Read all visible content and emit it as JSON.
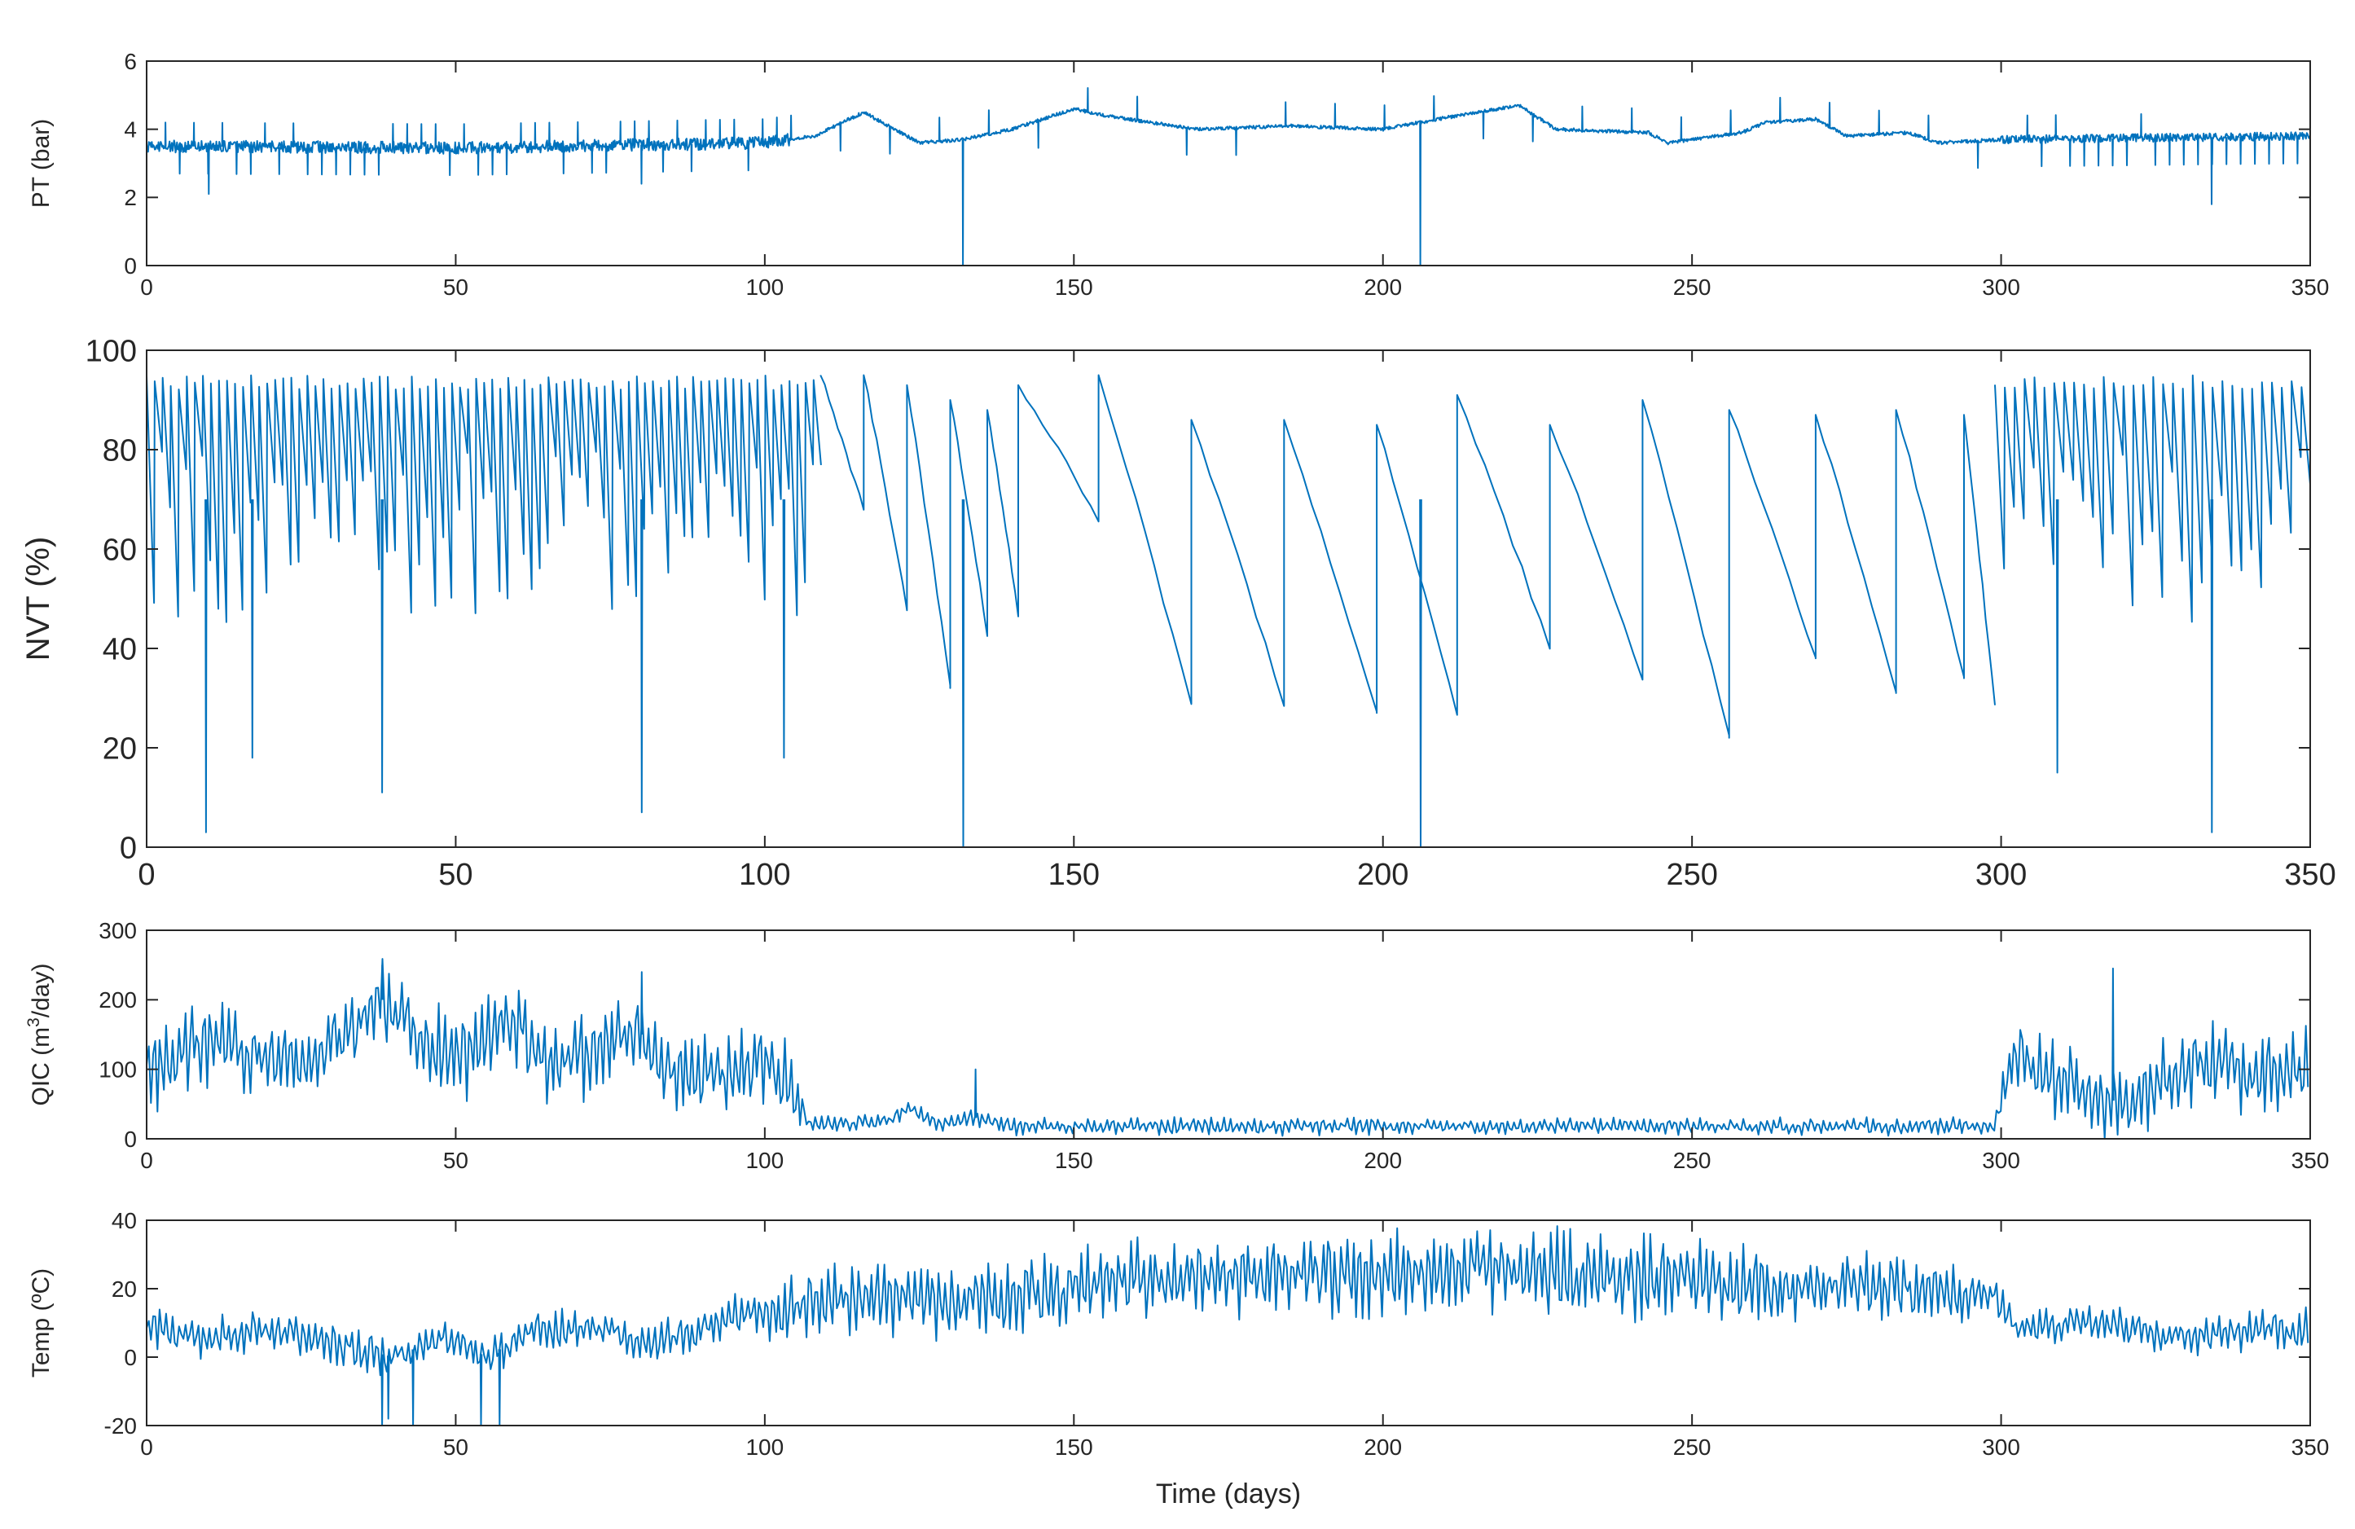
{
  "line_color": "#0072BD",
  "axes_color": "#262626",
  "chart_data": [
    {
      "id": "pt",
      "type": "line",
      "ylabel": "PT (bar)",
      "xlabel": "",
      "xlim": [
        0,
        350
      ],
      "ylim": [
        0,
        6
      ],
      "xticks": [
        0,
        50,
        100,
        150,
        200,
        250,
        300,
        350
      ],
      "xtick_labels": [
        "0",
        "50",
        "100",
        "150",
        "200",
        "250",
        "300",
        "350"
      ],
      "yticks": [
        0,
        2,
        4,
        6
      ],
      "ytick_labels": [
        "0",
        "2",
        "4",
        "6"
      ],
      "baseline": [
        [
          0,
          3.5
        ],
        [
          50,
          3.45
        ],
        [
          100,
          3.6
        ],
        [
          108,
          3.8
        ],
        [
          116,
          4.5
        ],
        [
          125,
          3.6
        ],
        [
          132,
          3.7
        ],
        [
          140,
          4.0
        ],
        [
          150,
          4.6
        ],
        [
          155,
          4.4
        ],
        [
          170,
          4.0
        ],
        [
          185,
          4.1
        ],
        [
          200,
          4.0
        ],
        [
          212,
          4.4
        ],
        [
          222,
          4.7
        ],
        [
          228,
          4.0
        ],
        [
          243,
          3.9
        ],
        [
          246,
          3.6
        ],
        [
          258,
          3.9
        ],
        [
          262,
          4.2
        ],
        [
          270,
          4.3
        ],
        [
          275,
          3.8
        ],
        [
          285,
          3.9
        ],
        [
          290,
          3.6
        ],
        [
          300,
          3.7
        ],
        [
          350,
          3.8
        ]
      ],
      "noise_segments": [
        [
          0,
          104,
          0.18
        ],
        [
          104,
          300,
          0.05
        ],
        [
          300,
          350,
          0.12
        ]
      ],
      "spikes": [
        [
          10,
          2.1
        ],
        [
          132,
          0
        ],
        [
          206,
          0
        ],
        [
          334,
          1.8
        ],
        [
          80,
          2.4
        ]
      ]
    },
    {
      "id": "nvt",
      "type": "line",
      "ylabel": "NVT (%)",
      "xlabel": "",
      "xlim": [
        0,
        350
      ],
      "ylim": [
        0,
        100
      ],
      "xticks": [
        0,
        50,
        100,
        150,
        200,
        250,
        300,
        350
      ],
      "xtick_labels": [
        "0",
        "50",
        "100",
        "150",
        "200",
        "250",
        "300",
        "350"
      ],
      "yticks": [
        0,
        20,
        40,
        60,
        80,
        100
      ],
      "ytick_labels": [
        "0",
        "20",
        "40",
        "60",
        "80",
        "100"
      ],
      "cycles": [
        [
          109,
          95,
          68
        ],
        [
          116,
          95,
          48
        ],
        [
          123,
          93,
          32
        ],
        [
          130,
          90,
          43
        ],
        [
          136,
          88,
          47
        ],
        [
          141,
          93,
          66
        ],
        [
          154,
          95,
          29
        ],
        [
          169,
          86,
          29
        ],
        [
          184,
          86,
          27
        ],
        [
          199,
          85,
          27
        ],
        [
          212,
          91,
          40
        ],
        [
          227,
          85,
          34
        ],
        [
          242,
          90,
          22
        ],
        [
          256,
          88,
          38
        ],
        [
          270,
          87,
          31
        ],
        [
          283,
          88,
          34
        ],
        [
          294,
          87,
          28
        ]
      ],
      "dense_ranges": [
        [
          0,
          108,
          1.3,
          95
        ],
        [
          299,
          350,
          1.6,
          95
        ]
      ],
      "spikes": [
        [
          132,
          0
        ],
        [
          206,
          0
        ],
        [
          9.5,
          3
        ],
        [
          38,
          11
        ],
        [
          80,
          7
        ],
        [
          334,
          3
        ],
        [
          309,
          15
        ],
        [
          17,
          18
        ],
        [
          103,
          18
        ]
      ]
    },
    {
      "id": "qic",
      "type": "line",
      "ylabel": "QIC (m3/day)",
      "ylabel_parts": [
        "QIC (m",
        "3",
        "/day)"
      ],
      "xlabel": "",
      "xlim": [
        0,
        350
      ],
      "ylim": [
        0,
        300
      ],
      "xticks": [
        0,
        50,
        100,
        150,
        200,
        250,
        300,
        350
      ],
      "xtick_labels": [
        "0",
        "50",
        "100",
        "150",
        "200",
        "250",
        "300",
        "350"
      ],
      "yticks": [
        0,
        100,
        200,
        300
      ],
      "ytick_labels": [
        "0",
        "100",
        "200",
        "300"
      ],
      "envelope": [
        [
          0,
          80
        ],
        [
          8,
          140
        ],
        [
          15,
          130
        ],
        [
          25,
          110
        ],
        [
          32,
          150
        ],
        [
          38,
          200
        ],
        [
          45,
          130
        ],
        [
          52,
          120
        ],
        [
          58,
          180
        ],
        [
          65,
          110
        ],
        [
          72,
          120
        ],
        [
          79,
          160
        ],
        [
          85,
          100
        ],
        [
          92,
          95
        ],
        [
          100,
          110
        ],
        [
          104,
          80
        ],
        [
          107,
          20
        ],
        [
          120,
          25
        ],
        [
          123,
          45
        ],
        [
          128,
          22
        ],
        [
          134,
          30
        ],
        [
          140,
          18
        ],
        [
          299,
          18
        ],
        [
          302,
          120
        ],
        [
          310,
          80
        ],
        [
          318,
          55
        ],
        [
          325,
          80
        ],
        [
          333,
          110
        ],
        [
          340,
          90
        ],
        [
          350,
          100
        ]
      ],
      "amplitude": [
        [
          0,
          60
        ],
        [
          104,
          60
        ],
        [
          107,
          12
        ],
        [
          299,
          12
        ],
        [
          302,
          55
        ],
        [
          350,
          60
        ]
      ],
      "spikes": [
        [
          318,
          245
        ],
        [
          38,
          250
        ],
        [
          80,
          240
        ],
        [
          134,
          100
        ]
      ]
    },
    {
      "id": "temp",
      "type": "line",
      "ylabel": "Temp (ºC)",
      "xlabel": "Time (days)",
      "xlim": [
        0,
        350
      ],
      "ylim": [
        -20,
        40
      ],
      "xticks": [
        0,
        50,
        100,
        150,
        200,
        250,
        300,
        350
      ],
      "xtick_labels": [
        "0",
        "50",
        "100",
        "150",
        "200",
        "250",
        "300",
        "350"
      ],
      "yticks": [
        -20,
        0,
        20,
        40
      ],
      "ytick_labels": [
        "-20",
        "0",
        "20",
        "40"
      ],
      "envelope": [
        [
          0,
          10
        ],
        [
          10,
          5
        ],
        [
          20,
          8
        ],
        [
          30,
          4
        ],
        [
          40,
          0
        ],
        [
          48,
          6
        ],
        [
          55,
          0
        ],
        [
          62,
          8
        ],
        [
          75,
          8
        ],
        [
          80,
          3
        ],
        [
          95,
          12
        ],
        [
          105,
          14
        ],
        [
          115,
          18
        ],
        [
          125,
          16
        ],
        [
          140,
          18
        ],
        [
          150,
          20
        ],
        [
          165,
          24
        ],
        [
          180,
          24
        ],
        [
          200,
          24
        ],
        [
          215,
          26
        ],
        [
          230,
          24
        ],
        [
          245,
          23
        ],
        [
          260,
          21
        ],
        [
          275,
          21
        ],
        [
          290,
          19
        ],
        [
          299,
          18
        ],
        [
          303,
          8
        ],
        [
          315,
          10
        ],
        [
          330,
          6
        ],
        [
          340,
          8
        ],
        [
          350,
          8
        ]
      ],
      "amplitude": [
        [
          0,
          6
        ],
        [
          95,
          6
        ],
        [
          105,
          10
        ],
        [
          230,
          13
        ],
        [
          299,
          8
        ],
        [
          303,
          5
        ],
        [
          350,
          6
        ]
      ],
      "spikes": [
        [
          38,
          -20
        ],
        [
          39,
          -18
        ],
        [
          43,
          -20
        ],
        [
          54,
          -20
        ],
        [
          57,
          -20
        ]
      ]
    }
  ]
}
